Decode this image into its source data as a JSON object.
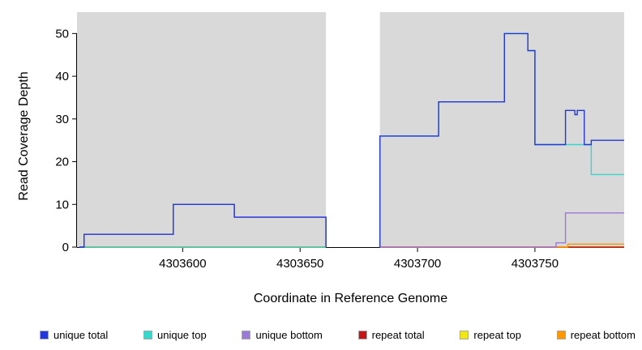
{
  "chart_data": {
    "type": "line",
    "subtype": "step-coverage",
    "title": "",
    "xlabel": "Coordinate in Reference Genome",
    "ylabel": "Read Coverage Depth",
    "xlim": [
      4303555,
      4303788
    ],
    "ylim": [
      0,
      55
    ],
    "xticks": [
      4303600,
      4303650,
      4303700,
      4303750
    ],
    "yticks": [
      0,
      10,
      20,
      30,
      40,
      50
    ],
    "panel_background": "#d9d9d9",
    "gap_region": {
      "x0": 4303661,
      "x1": 4303684
    },
    "background_regions": [
      {
        "x0": 4303555,
        "x1": 4303661
      },
      {
        "x0": 4303684,
        "x1": 4303788
      }
    ],
    "series": [
      {
        "name": "repeat top",
        "color": "#f2e713",
        "segments": [
          [
            [
              4303556,
              0
            ],
            [
              4303661,
              0
            ]
          ],
          [
            [
              4303684,
              0
            ],
            [
              4303788,
              0
            ]
          ]
        ]
      },
      {
        "name": "repeat total",
        "color": "#c81414",
        "segments": [
          [
            [
              4303556,
              0
            ],
            [
              4303661,
              0
            ]
          ],
          [
            [
              4303684,
              0
            ],
            [
              4303788,
              0
            ]
          ]
        ]
      },
      {
        "name": "repeat bottom",
        "color": "#ff9800",
        "segments": [
          [
            [
              4303556,
              0
            ],
            [
              4303661,
              0
            ]
          ],
          [
            [
              4303684,
              0
            ],
            [
              4303764,
              0.7
            ],
            [
              4303788,
              0.7
            ]
          ]
        ]
      },
      {
        "name": "unique top",
        "color": "#35d8cc",
        "segments": [
          [
            [
              4303556,
              0
            ],
            [
              4303661,
              0
            ]
          ],
          [
            [
              4303684,
              0
            ],
            [
              4303684,
              26
            ],
            [
              4303709,
              34
            ],
            [
              4303737,
              50
            ],
            [
              4303747,
              46
            ],
            [
              4303750,
              24
            ],
            [
              4303774,
              17
            ],
            [
              4303788,
              17
            ]
          ]
        ]
      },
      {
        "name": "unique bottom",
        "color": "#9c77dc",
        "segments": [
          [
            [
              4303556,
              0
            ],
            [
              4303558,
              3
            ],
            [
              4303596,
              10
            ],
            [
              4303622,
              7
            ],
            [
              4303661,
              0
            ]
          ],
          [
            [
              4303684,
              0
            ],
            [
              4303759,
              1
            ],
            [
              4303763,
              8
            ],
            [
              4303788,
              8
            ]
          ]
        ]
      },
      {
        "name": "unique total",
        "color": "#2336d9",
        "segments": [
          [
            [
              4303556,
              0
            ],
            [
              4303558,
              3
            ],
            [
              4303596,
              10
            ],
            [
              4303622,
              7
            ],
            [
              4303661,
              0
            ]
          ],
          [
            [
              4303684,
              0
            ],
            [
              4303684,
              26
            ],
            [
              4303709,
              34
            ],
            [
              4303737,
              50
            ],
            [
              4303747,
              46
            ],
            [
              4303750,
              24
            ],
            [
              4303763,
              32
            ],
            [
              4303767,
              31
            ],
            [
              4303768,
              32
            ],
            [
              4303771,
              24
            ],
            [
              4303774,
              25
            ],
            [
              4303788,
              25
            ]
          ]
        ]
      }
    ],
    "legend": [
      "unique total",
      "unique top",
      "unique bottom",
      "repeat total",
      "repeat top",
      "repeat bottom"
    ]
  }
}
